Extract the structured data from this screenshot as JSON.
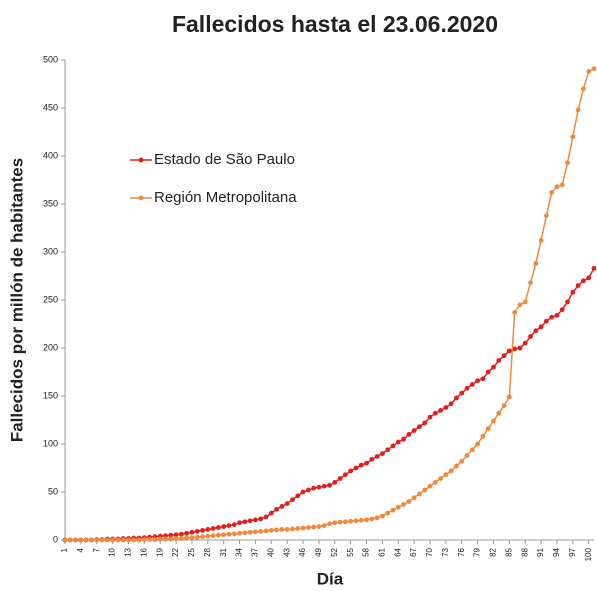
{
  "chart_data": {
    "type": "line",
    "title": "Fallecidos hasta el 23.06.2020",
    "x_label": "Día",
    "y_label": "Fallecidos por millón de habitantes",
    "x": [
      1,
      2,
      3,
      4,
      5,
      6,
      7,
      8,
      9,
      10,
      11,
      12,
      13,
      14,
      15,
      16,
      17,
      18,
      19,
      20,
      21,
      22,
      23,
      24,
      25,
      26,
      27,
      28,
      29,
      30,
      31,
      32,
      33,
      34,
      35,
      36,
      37,
      38,
      39,
      40,
      41,
      42,
      43,
      44,
      45,
      46,
      47,
      48,
      49,
      50,
      51,
      52,
      53,
      54,
      55,
      56,
      57,
      58,
      59,
      60,
      61,
      62,
      63,
      64,
      65,
      66,
      67,
      68,
      69,
      70,
      71,
      72,
      73,
      74,
      75,
      76,
      77,
      78,
      79,
      80,
      81,
      82,
      83,
      84,
      85,
      86,
      87,
      88,
      89,
      90,
      91,
      92,
      93,
      94,
      95,
      96,
      97,
      98,
      99,
      100,
      101
    ],
    "xlim": [
      1,
      101
    ],
    "xticks": [
      1,
      4,
      7,
      10,
      13,
      16,
      19,
      22,
      25,
      28,
      31,
      34,
      37,
      40,
      43,
      46,
      49,
      52,
      55,
      58,
      61,
      64,
      67,
      70,
      73,
      76,
      79,
      82,
      85,
      88,
      91,
      94,
      97,
      100
    ],
    "ylim": [
      0,
      500
    ],
    "yticks": [
      0,
      50,
      100,
      150,
      200,
      250,
      300,
      350,
      400,
      450,
      500
    ],
    "series": [
      {
        "name": "Estado de São Paulo",
        "color": "#e0201c",
        "values": [
          0,
          0,
          0,
          0,
          0,
          0,
          0.5,
          0.5,
          1,
          1,
          1,
          1.5,
          1.5,
          2,
          2,
          2.5,
          3,
          3.5,
          4,
          4.5,
          5,
          5.5,
          6,
          7,
          8,
          9,
          10,
          11,
          12,
          13,
          14,
          15,
          16,
          18,
          19,
          20,
          21,
          22,
          24,
          28,
          32,
          35,
          38,
          42,
          46,
          50,
          52,
          54,
          55,
          56,
          57,
          60,
          64,
          68,
          72,
          75,
          78,
          80,
          84,
          87,
          90,
          94,
          98,
          102,
          105,
          110,
          114,
          118,
          122,
          128,
          132,
          135,
          138,
          142,
          148,
          153,
          158,
          162,
          166,
          168,
          175,
          180,
          187,
          192,
          197,
          199,
          200,
          205,
          212,
          218,
          222,
          228,
          232,
          234,
          240,
          248,
          258,
          265,
          270,
          273,
          283
        ]
      },
      {
        "name": "Región Metropolitana",
        "color": "#ed8a3f",
        "values": [
          0,
          0,
          0,
          0,
          0,
          0,
          0,
          0,
          0,
          0,
          0,
          0,
          0,
          0,
          0,
          0.5,
          0.5,
          0.5,
          1,
          1,
          1,
          1.5,
          1.5,
          2,
          2.5,
          3,
          3.5,
          4,
          4.5,
          5,
          5.5,
          6,
          6.5,
          7,
          7.5,
          8,
          8.5,
          9,
          9.5,
          10,
          10.5,
          11,
          11,
          11.5,
          12,
          12.5,
          13,
          13.5,
          14,
          15,
          17,
          18,
          18.5,
          19,
          19.5,
          20,
          20.5,
          21,
          22,
          23,
          25,
          28,
          31,
          34,
          37,
          40,
          44,
          48,
          52,
          56,
          60,
          64,
          68,
          72,
          77,
          82,
          88,
          94,
          100,
          108,
          116,
          124,
          132,
          140,
          149,
          237,
          245,
          248,
          268,
          288,
          312,
          338,
          362,
          368,
          370,
          393,
          420,
          448,
          470,
          488,
          491
        ]
      }
    ]
  }
}
